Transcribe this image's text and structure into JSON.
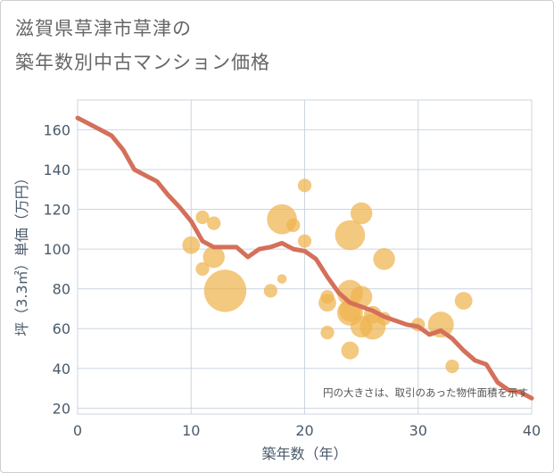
{
  "chart_data": {
    "type": "scatter",
    "title_lines": [
      "滋賀県草津市草津の",
      "築年数別中古マンション価格"
    ],
    "xlabel": "築年数（年）",
    "ylabel": "坪（3.3㎡）単価（万円）",
    "xlim": [
      0,
      40
    ],
    "ylim": [
      17,
      175
    ],
    "x_ticks": [
      0,
      10,
      20,
      30,
      40
    ],
    "y_ticks": [
      20,
      40,
      60,
      80,
      100,
      120,
      140,
      160
    ],
    "grid": true,
    "note": "円の大きさは、取引のあった物件面積を示す",
    "colors": {
      "bubble": "#efb34e",
      "line": "#d4705a",
      "grid": "#ccd6e0"
    },
    "series": [
      {
        "kind": "bubble",
        "points": [
          {
            "x": 10,
            "y": 102,
            "size": 3
          },
          {
            "x": 11,
            "y": 116,
            "size": 2
          },
          {
            "x": 11,
            "y": 90,
            "size": 2
          },
          {
            "x": 12,
            "y": 113,
            "size": 2
          },
          {
            "x": 12,
            "y": 96,
            "size": 4
          },
          {
            "x": 13,
            "y": 79,
            "size": 9
          },
          {
            "x": 17,
            "y": 79,
            "size": 2
          },
          {
            "x": 18,
            "y": 115,
            "size": 6
          },
          {
            "x": 18,
            "y": 85,
            "size": 1
          },
          {
            "x": 19,
            "y": 112,
            "size": 2
          },
          {
            "x": 20,
            "y": 132,
            "size": 2
          },
          {
            "x": 20,
            "y": 104,
            "size": 2
          },
          {
            "x": 22,
            "y": 73,
            "size": 3
          },
          {
            "x": 22,
            "y": 76,
            "size": 2
          },
          {
            "x": 22,
            "y": 58,
            "size": 2
          },
          {
            "x": 24,
            "y": 107,
            "size": 6
          },
          {
            "x": 24,
            "y": 78,
            "size": 5
          },
          {
            "x": 24,
            "y": 69,
            "size": 4
          },
          {
            "x": 24,
            "y": 68,
            "size": 5
          },
          {
            "x": 24,
            "y": 49,
            "size": 3
          },
          {
            "x": 25,
            "y": 118,
            "size": 4
          },
          {
            "x": 25,
            "y": 76,
            "size": 4
          },
          {
            "x": 25,
            "y": 61,
            "size": 4
          },
          {
            "x": 26,
            "y": 67,
            "size": 3
          },
          {
            "x": 26,
            "y": 61,
            "size": 5
          },
          {
            "x": 27,
            "y": 95,
            "size": 4
          },
          {
            "x": 27,
            "y": 65,
            "size": 2
          },
          {
            "x": 30,
            "y": 62,
            "size": 2
          },
          {
            "x": 32,
            "y": 62,
            "size": 5
          },
          {
            "x": 33,
            "y": 41,
            "size": 2
          },
          {
            "x": 34,
            "y": 74,
            "size": 3
          }
        ]
      },
      {
        "kind": "line",
        "x": [
          0,
          1,
          2,
          3,
          4,
          5,
          6,
          7,
          8,
          9,
          10,
          11,
          12,
          13,
          14,
          15,
          16,
          17,
          18,
          19,
          20,
          21,
          22,
          23,
          24,
          25,
          26,
          27,
          28,
          29,
          30,
          31,
          32,
          33,
          34,
          35,
          36,
          37,
          38,
          39,
          40
        ],
        "y": [
          166,
          163,
          160,
          157,
          150,
          140,
          137,
          134,
          127,
          121,
          114,
          104,
          101,
          101,
          101,
          96,
          100,
          101,
          103,
          100,
          99,
          95,
          86,
          78,
          73,
          71,
          69,
          66,
          64,
          62,
          61,
          57,
          59,
          55,
          49,
          44,
          42,
          33,
          29,
          28,
          25
        ]
      }
    ]
  }
}
